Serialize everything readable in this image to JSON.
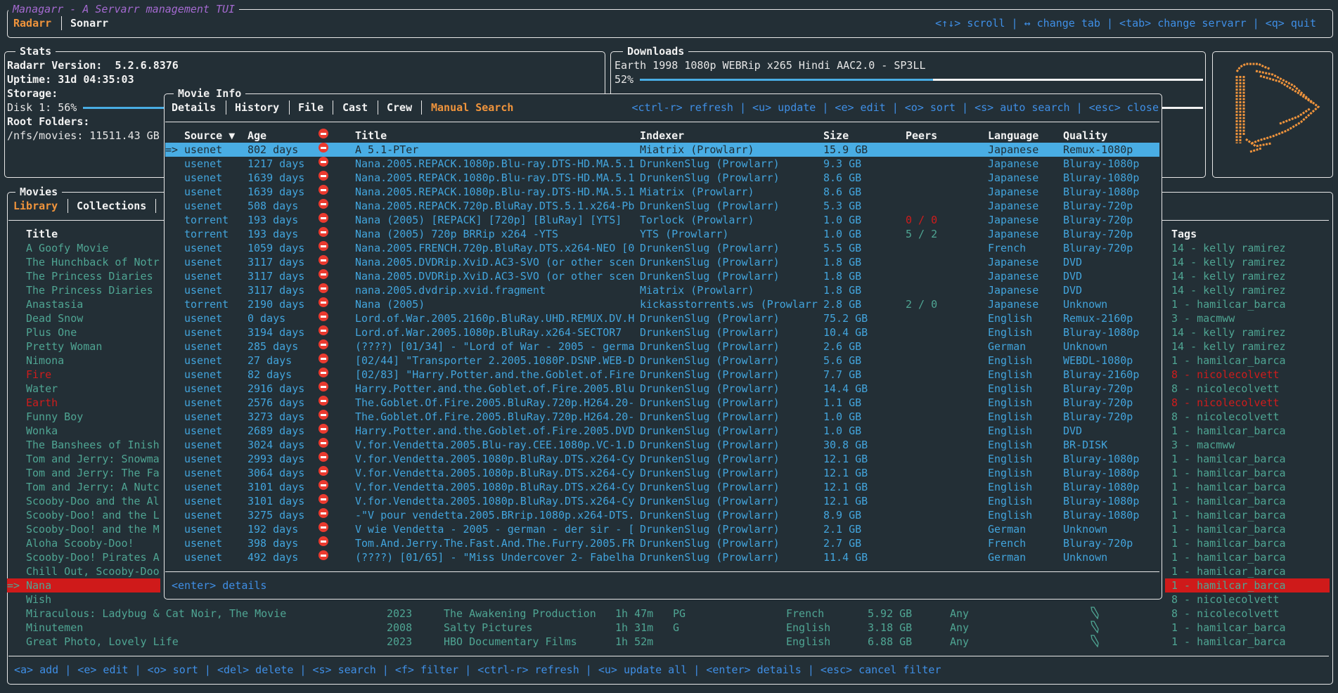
{
  "app": {
    "title": "Managarr - A Servarr management TUI",
    "servarr_tabs": [
      {
        "label": "Radarr",
        "active": true
      },
      {
        "label": "Sonarr",
        "active": false
      }
    ],
    "help": "<↑↓> scroll | ↔ change tab | <tab> change servarr | <q> quit"
  },
  "stats": {
    "title": "Stats",
    "version_label": "Radarr Version:  5.2.6.8376",
    "uptime_label": "Uptime: 31d 04:35:03",
    "storage_label": "Storage:",
    "disk_label": "Disk 1: 56%",
    "disk_percent": 56,
    "root_folders_label": "Root Folders:",
    "root_folder": "/nfs/movies: 11511.43 GB"
  },
  "downloads": {
    "title": "Downloads",
    "items": [
      {
        "name": "Earth 1998 1080p WEBRip x265 Hindi AAC2.0 - SP3LL",
        "percent_label": "52%",
        "percent": 52
      }
    ]
  },
  "colors": {
    "accent": "#f0943c",
    "selection": "#49ade4",
    "danger": "#cf1c1c",
    "text": "#4fa593",
    "help": "#3f8fe6",
    "title": "#a46ad0",
    "logo": "#f0943c"
  },
  "logo": {
    "icon": "radarr-logo-icon"
  },
  "movies": {
    "title": "Movies",
    "tabs": [
      {
        "label": "Library",
        "active": true
      },
      {
        "label": "Collections",
        "active": false
      }
    ],
    "headers": {
      "title": "Title",
      "tags": "Tags"
    },
    "rows": [
      {
        "title": "A Goofy Movie",
        "tags": "14 - kelly ramirez"
      },
      {
        "title": "The Hunchback of Notr",
        "tags": "14 - kelly ramirez"
      },
      {
        "title": "The Princess Diaries",
        "tags": "14 - kelly ramirez"
      },
      {
        "title": "The Princess Diaries",
        "tags": "14 - kelly ramirez"
      },
      {
        "title": "Anastasia",
        "tags": "1 - hamilcar_barca"
      },
      {
        "title": "Dead Snow",
        "tags": "3 - macmww"
      },
      {
        "title": "Plus One",
        "tags": "14 - kelly ramirez"
      },
      {
        "title": "Pretty Woman",
        "tags": "14 - kelly ramirez"
      },
      {
        "title": "Nimona",
        "tags": "1 - hamilcar_barca"
      },
      {
        "title": "Fire",
        "tags": "8 - nicolecolvett",
        "missing": true
      },
      {
        "title": "Water",
        "tags": "8 - nicolecolvett"
      },
      {
        "title": "Earth",
        "tags": "8 - nicolecolvett",
        "missing": true
      },
      {
        "title": "Funny Boy",
        "tags": "8 - nicolecolvett"
      },
      {
        "title": "Wonka",
        "tags": "1 - hamilcar_barca"
      },
      {
        "title": "The Banshees of Inish",
        "tags": "3 - macmww"
      },
      {
        "title": "Tom and Jerry: Snowma",
        "tags": "1 - hamilcar_barca"
      },
      {
        "title": "Tom and Jerry: The Fa",
        "tags": "1 - hamilcar_barca"
      },
      {
        "title": "Tom and Jerry: A Nutc",
        "tags": "1 - hamilcar_barca"
      },
      {
        "title": "Scooby-Doo and the Al",
        "tags": "1 - hamilcar_barca"
      },
      {
        "title": "Scooby-Doo! and the L",
        "tags": "1 - hamilcar_barca"
      },
      {
        "title": "Scooby-Doo! and the M",
        "tags": "1 - hamilcar_barca"
      },
      {
        "title": "Aloha Scooby-Doo!",
        "tags": "1 - hamilcar_barca"
      },
      {
        "title": "Scooby-Doo! Pirates A",
        "tags": "1 - hamilcar_barca"
      },
      {
        "title": "Chill Out, Scooby-Doo",
        "tags": "1 - hamilcar_barca"
      },
      {
        "title": "Nana",
        "tags": "1 - hamilcar_barca",
        "selected": true,
        "marker": "=>"
      },
      {
        "title": "Wish",
        "tags": "8 - nicolecolvett"
      },
      {
        "title": "Miraculous: Ladybug & Cat Noir, The Movie",
        "year": "2023",
        "studio": "The Awakening Production",
        "runtime": "1h 47m",
        "rating": "PG",
        "language": "French",
        "size": "5.92 GB",
        "profile": "Any",
        "monitored_icon": "bookmark-icon",
        "tags": "8 - nicolecolvett"
      },
      {
        "title": "Minutemen",
        "year": "2008",
        "studio": "Salty Pictures",
        "runtime": "1h 31m",
        "rating": "G",
        "language": "English",
        "size": "3.18 GB",
        "profile": "Any",
        "monitored_icon": "bookmark-icon",
        "tags": "1 - hamilcar_barca"
      },
      {
        "title": "Great Photo, Lovely Life",
        "year": "2023",
        "studio": "HBO Documentary Films",
        "runtime": "1h 52m",
        "rating": "",
        "language": "English",
        "size": "6.88 GB",
        "profile": "Any",
        "monitored_icon": "bookmark-icon",
        "tags": "1 - hamilcar_barca"
      }
    ],
    "help": "<a> add | <e> edit | <o> sort | <del> delete | <s> search | <f> filter | <ctrl-r> refresh | <u> update all | <enter> details | <esc> cancel filter"
  },
  "movie_info": {
    "title": "Movie Info",
    "tabs": [
      {
        "label": "Details",
        "active": false
      },
      {
        "label": "History",
        "active": false
      },
      {
        "label": "File",
        "active": false
      },
      {
        "label": "Cast",
        "active": false
      },
      {
        "label": "Crew",
        "active": false
      },
      {
        "label": "Manual Search",
        "active": true
      }
    ],
    "help": "<ctrl-r> refresh | <u> update | <e> edit | <o> sort | <s> auto search | <esc> close",
    "footer_help": "<enter> details",
    "columns": {
      "source": "Source ▼",
      "age": "Age",
      "rejected_icon": "no-entry-icon",
      "title": "Title",
      "indexer": "Indexer",
      "size": "Size",
      "peers": "Peers",
      "language": "Language",
      "quality": "Quality"
    },
    "selected_marker": "=>",
    "releases": [
      {
        "source": "usenet",
        "age": "802 days",
        "title": "A 5.1-PTer",
        "indexer": "Miatrix (Prowlarr)",
        "size": "15.9 GB",
        "peers": "",
        "language": "Japanese",
        "quality": "Remux-1080p",
        "selected": true
      },
      {
        "source": "usenet",
        "age": "1217 days",
        "title": "Nana.2005.REPACK.1080p.Blu-ray.DTS-HD.MA.5.1",
        "indexer": "DrunkenSlug (Prowlarr)",
        "size": "9.3 GB",
        "peers": "",
        "language": "Japanese",
        "quality": "Bluray-1080p"
      },
      {
        "source": "usenet",
        "age": "1639 days",
        "title": "Nana.2005.REPACK.1080p.Blu-ray.DTS-HD.MA.5.1",
        "indexer": "DrunkenSlug (Prowlarr)",
        "size": "8.6 GB",
        "peers": "",
        "language": "Japanese",
        "quality": "Bluray-1080p"
      },
      {
        "source": "usenet",
        "age": "1639 days",
        "title": "Nana.2005.REPACK.1080p.Blu-ray.DTS-HD.MA.5.1",
        "indexer": "Miatrix (Prowlarr)",
        "size": "8.6 GB",
        "peers": "",
        "language": "Japanese",
        "quality": "Bluray-1080p"
      },
      {
        "source": "usenet",
        "age": "508 days",
        "title": "Nana.2005.REPACK.720p.BluRay.DTS.5.1.x264-Pb",
        "indexer": "DrunkenSlug (Prowlarr)",
        "size": "5.3 GB",
        "peers": "",
        "language": "Japanese",
        "quality": "Bluray-720p"
      },
      {
        "source": "torrent",
        "age": "193 days",
        "title": "Nana (2005) [REPACK] [720p] [BluRay] [YTS]",
        "indexer": "Torlock (Prowlarr)",
        "size": "1.0 GB",
        "peers": "0 / 0",
        "peers_bad": true,
        "language": "Japanese",
        "quality": "Bluray-720p"
      },
      {
        "source": "torrent",
        "age": "193 days",
        "title": "Nana (2005) 720p BRRip x264 -YTS",
        "indexer": "YTS (Prowlarr)",
        "size": "1.0 GB",
        "peers": "5 / 2",
        "language": "Japanese",
        "quality": "Bluray-720p"
      },
      {
        "source": "usenet",
        "age": "1059 days",
        "title": "Nana.2005.FRENCH.720p.BluRay.DTS.x264-NEO [0",
        "indexer": "DrunkenSlug (Prowlarr)",
        "size": "5.5 GB",
        "peers": "",
        "language": "French",
        "quality": "Bluray-720p"
      },
      {
        "source": "usenet",
        "age": "3117 days",
        "title": "Nana.2005.DVDRip.XviD.AC3-SVO (or other scen",
        "indexer": "DrunkenSlug (Prowlarr)",
        "size": "1.8 GB",
        "peers": "",
        "language": "Japanese",
        "quality": "DVD"
      },
      {
        "source": "usenet",
        "age": "3117 days",
        "title": "Nana.2005.DVDRip.XviD.AC3-SVO (or other scen",
        "indexer": "DrunkenSlug (Prowlarr)",
        "size": "1.8 GB",
        "peers": "",
        "language": "Japanese",
        "quality": "DVD"
      },
      {
        "source": "usenet",
        "age": "3117 days",
        "title": "nana.2005.dvdrip.xvid.fragment",
        "indexer": "Miatrix (Prowlarr)",
        "size": "1.8 GB",
        "peers": "",
        "language": "Japanese",
        "quality": "DVD"
      },
      {
        "source": "torrent",
        "age": "2190 days",
        "title": "Nana (2005)",
        "indexer": "kickasstorrents.ws (Prowlarr",
        "size": "2.8 GB",
        "peers": "2 / 0",
        "language": "Japanese",
        "quality": "Unknown"
      },
      {
        "source": "usenet",
        "age": "0 days",
        "title": "Lord.of.War.2005.2160p.BluRay.UHD.REMUX.DV.H",
        "indexer": "DrunkenSlug (Prowlarr)",
        "size": "75.2 GB",
        "peers": "",
        "language": "English",
        "quality": "Remux-2160p"
      },
      {
        "source": "usenet",
        "age": "3194 days",
        "title": "Lord.of.War.2005.1080p.BluRay.x264-SECTOR7",
        "indexer": "DrunkenSlug (Prowlarr)",
        "size": "10.4 GB",
        "peers": "",
        "language": "English",
        "quality": "Bluray-1080p"
      },
      {
        "source": "usenet",
        "age": "285 days",
        "title": "(????) [01/34] - \"Lord of War - 2005 - germa",
        "indexer": "DrunkenSlug (Prowlarr)",
        "size": "2.6 GB",
        "peers": "",
        "language": "German",
        "quality": "Unknown"
      },
      {
        "source": "usenet",
        "age": "27 days",
        "title": "[02/44] \"Transporter 2.2005.1080P.DSNP.WEB-D",
        "indexer": "DrunkenSlug (Prowlarr)",
        "size": "5.6 GB",
        "peers": "",
        "language": "English",
        "quality": "WEBDL-1080p"
      },
      {
        "source": "usenet",
        "age": "82 days",
        "title": "[02/83] \"Harry.Potter.and.the.Goblet.of.Fire",
        "indexer": "DrunkenSlug (Prowlarr)",
        "size": "7.7 GB",
        "peers": "",
        "language": "English",
        "quality": "Bluray-2160p"
      },
      {
        "source": "usenet",
        "age": "2916 days",
        "title": "Harry.Potter.and.the.Goblet.of.Fire.2005.Blu",
        "indexer": "DrunkenSlug (Prowlarr)",
        "size": "14.4 GB",
        "peers": "",
        "language": "English",
        "quality": "Bluray-720p"
      },
      {
        "source": "usenet",
        "age": "2576 days",
        "title": "The.Goblet.Of.Fire.2005.BluRay.720p.H264.20-",
        "indexer": "DrunkenSlug (Prowlarr)",
        "size": "1.1 GB",
        "peers": "",
        "language": "English",
        "quality": "Bluray-720p"
      },
      {
        "source": "usenet",
        "age": "3273 days",
        "title": "The.Goblet.Of.Fire.2005.BluRay.720p.H264.20-",
        "indexer": "DrunkenSlug (Prowlarr)",
        "size": "1.0 GB",
        "peers": "",
        "language": "English",
        "quality": "Bluray-720p"
      },
      {
        "source": "usenet",
        "age": "2689 days",
        "title": "Harry.Potter.and.the.Goblet.of.Fire.2005.DVD",
        "indexer": "DrunkenSlug (Prowlarr)",
        "size": "1.0 GB",
        "peers": "",
        "language": "English",
        "quality": "DVD"
      },
      {
        "source": "usenet",
        "age": "3024 days",
        "title": "V.for.Vendetta.2005.Blu-ray.CEE.1080p.VC-1.D",
        "indexer": "DrunkenSlug (Prowlarr)",
        "size": "30.8 GB",
        "peers": "",
        "language": "English",
        "quality": "BR-DISK"
      },
      {
        "source": "usenet",
        "age": "2993 days",
        "title": "V.for.Vendetta.2005.1080p.BluRay.DTS.x264-Cy",
        "indexer": "DrunkenSlug (Prowlarr)",
        "size": "12.1 GB",
        "peers": "",
        "language": "English",
        "quality": "Bluray-1080p"
      },
      {
        "source": "usenet",
        "age": "3064 days",
        "title": "V.for.Vendetta.2005.1080p.BluRay.DTS.x264-Cy",
        "indexer": "DrunkenSlug (Prowlarr)",
        "size": "12.1 GB",
        "peers": "",
        "language": "English",
        "quality": "Bluray-1080p"
      },
      {
        "source": "usenet",
        "age": "3101 days",
        "title": "V.for.Vendetta.2005.1080p.BluRay.DTS.x264-Cy",
        "indexer": "DrunkenSlug (Prowlarr)",
        "size": "12.1 GB",
        "peers": "",
        "language": "English",
        "quality": "Bluray-1080p"
      },
      {
        "source": "usenet",
        "age": "3101 days",
        "title": "V.for.Vendetta.2005.1080p.BluRay.DTS.x264-Cy",
        "indexer": "DrunkenSlug (Prowlarr)",
        "size": "12.1 GB",
        "peers": "",
        "language": "English",
        "quality": "Bluray-1080p"
      },
      {
        "source": "usenet",
        "age": "3275 days",
        "title": "-\"V pour vendetta.2005.BRrip.1080p.x264-DTS.",
        "indexer": "DrunkenSlug (Prowlarr)",
        "size": "8.9 GB",
        "peers": "",
        "language": "English",
        "quality": "Bluray-1080p"
      },
      {
        "source": "usenet",
        "age": "192 days",
        "title": "V wie Vendetta - 2005 - german - der sir - [",
        "indexer": "DrunkenSlug (Prowlarr)",
        "size": "2.1 GB",
        "peers": "",
        "language": "German",
        "quality": "Unknown"
      },
      {
        "source": "usenet",
        "age": "398 days",
        "title": "Tom.And.Jerry.The.Fast.And.The.Furry.2005.FR",
        "indexer": "DrunkenSlug (Prowlarr)",
        "size": "2.7 GB",
        "peers": "",
        "language": "French",
        "quality": "Bluray-720p"
      },
      {
        "source": "usenet",
        "age": "492 days",
        "title": "(????) [01/65] - \"Miss Undercover 2- Fabelha",
        "indexer": "DrunkenSlug (Prowlarr)",
        "size": "11.4 GB",
        "peers": "",
        "language": "German",
        "quality": "Unknown"
      }
    ]
  }
}
